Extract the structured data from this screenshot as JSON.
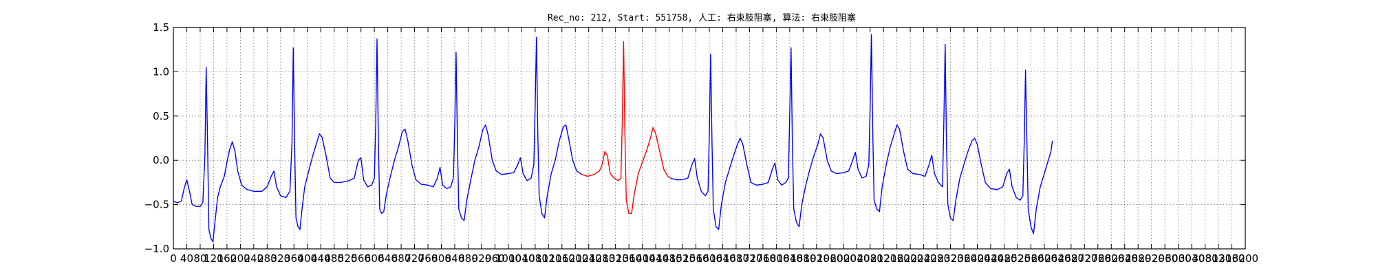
{
  "chart_data": {
    "type": "line",
    "title": "Rec_no: 212, Start: 551758, 人工: 右束肢阻塞, 算法: 右束肢阻塞",
    "xlabel": "",
    "ylabel": "",
    "xlim": [
      0,
      1600
    ],
    "ylim": [
      -1.0,
      1.5
    ],
    "grid": true,
    "yticks": [
      -1.0,
      -0.5,
      0.0,
      0.5,
      1.0,
      1.5
    ],
    "ytick_labels": [
      "−1.0",
      "−0.5",
      "0.0",
      "0.5",
      "1.0",
      "1.5"
    ],
    "xticks": [
      0,
      20,
      40,
      60,
      80,
      100,
      120,
      140,
      160,
      180,
      200,
      220,
      240,
      260,
      280,
      300,
      320,
      340,
      360,
      380,
      400,
      420,
      440,
      460,
      480,
      500,
      520,
      540,
      560,
      580,
      600,
      620,
      640,
      660,
      680,
      700,
      720,
      740,
      760,
      780,
      800,
      820,
      840,
      860,
      880,
      900,
      920,
      940,
      960,
      980,
      1000,
      1020,
      1040,
      1060,
      1080,
      1100,
      1120,
      1140,
      1160,
      1180,
      1200,
      1220,
      1240,
      1260,
      1280,
      1300,
      1320,
      1340,
      1360,
      1380,
      1400,
      1420,
      1440,
      1460,
      1480,
      1500,
      1520,
      1540,
      1560,
      1580,
      1600
    ],
    "xtick_labels": [
      "0",
      "40",
      "80",
      "120",
      "160",
      "200",
      "240",
      "280",
      "320",
      "360",
      "400",
      "440",
      "480",
      "520",
      "560",
      "600",
      "640",
      "680",
      "720",
      "760",
      "800",
      "840",
      "880",
      "920",
      "960",
      "1000",
      "1040",
      "1080",
      "1120",
      "1160",
      "1200",
      "1240",
      "1280",
      "1320",
      "1360",
      "1400",
      "1440",
      "1480",
      "1520",
      "1560",
      "1600",
      "1640",
      "1680",
      "1720",
      "1760",
      "1800",
      "1840",
      "1880",
      "1920",
      "1960",
      "2000",
      "2040",
      "2080",
      "2120",
      "2160",
      "2200",
      "2240",
      "2280",
      "2320",
      "2360",
      "2400",
      "2440",
      "2480",
      "2520",
      "2560",
      "2600",
      "2640",
      "2680",
      "2720",
      "2760",
      "2800",
      "2840",
      "2880",
      "2920",
      "2960",
      "3000",
      "3040",
      "3080",
      "3120",
      "3160",
      "3200"
    ],
    "series": [
      {
        "color": "#0000ff",
        "points": [
          [
            0,
            -0.46
          ],
          [
            6,
            -0.48
          ],
          [
            12,
            -0.46
          ],
          [
            16,
            -0.32
          ],
          [
            20,
            -0.22
          ],
          [
            24,
            -0.35
          ],
          [
            28,
            -0.5
          ],
          [
            34,
            -0.52
          ],
          [
            40,
            -0.52
          ],
          [
            44,
            -0.48
          ],
          [
            47,
            0.05
          ],
          [
            49,
            1.05
          ],
          [
            51,
            0.2
          ],
          [
            53,
            -0.78
          ],
          [
            56,
            -0.88
          ],
          [
            59,
            -0.92
          ],
          [
            62,
            -0.7
          ],
          [
            66,
            -0.42
          ],
          [
            70,
            -0.3
          ],
          [
            76,
            -0.18
          ],
          [
            80,
            -0.02
          ],
          [
            84,
            0.12
          ],
          [
            88,
            0.21
          ],
          [
            92,
            0.1
          ],
          [
            96,
            -0.12
          ],
          [
            102,
            -0.28
          ],
          [
            110,
            -0.33
          ],
          [
            120,
            -0.35
          ],
          [
            132,
            -0.35
          ],
          [
            140,
            -0.3
          ],
          [
            146,
            -0.18
          ],
          [
            150,
            -0.12
          ],
          [
            154,
            -0.3
          ],
          [
            160,
            -0.4
          ],
          [
            168,
            -0.42
          ],
          [
            174,
            -0.35
          ],
          [
            177,
            0.2
          ],
          [
            179,
            1.27
          ],
          [
            181,
            0.2
          ],
          [
            183,
            -0.65
          ],
          [
            186,
            -0.75
          ],
          [
            189,
            -0.78
          ],
          [
            192,
            -0.55
          ],
          [
            196,
            -0.3
          ],
          [
            202,
            -0.12
          ],
          [
            208,
            0.05
          ],
          [
            214,
            0.2
          ],
          [
            218,
            0.3
          ],
          [
            222,
            0.26
          ],
          [
            228,
            0.05
          ],
          [
            234,
            -0.2
          ],
          [
            240,
            -0.25
          ],
          [
            250,
            -0.25
          ],
          [
            262,
            -0.23
          ],
          [
            270,
            -0.2
          ],
          [
            276,
            0.0
          ],
          [
            280,
            0.03
          ],
          [
            284,
            -0.22
          ],
          [
            290,
            -0.3
          ],
          [
            296,
            -0.28
          ],
          [
            300,
            -0.2
          ],
          [
            302,
            0.4
          ],
          [
            304,
            1.37
          ],
          [
            306,
            0.2
          ],
          [
            308,
            -0.55
          ],
          [
            311,
            -0.6
          ],
          [
            314,
            -0.58
          ],
          [
            318,
            -0.38
          ],
          [
            324,
            -0.18
          ],
          [
            330,
            0.0
          ],
          [
            336,
            0.15
          ],
          [
            342,
            0.33
          ],
          [
            346,
            0.35
          ],
          [
            350,
            0.22
          ],
          [
            356,
            -0.05
          ],
          [
            362,
            -0.22
          ],
          [
            370,
            -0.27
          ],
          [
            380,
            -0.28
          ],
          [
            388,
            -0.3
          ],
          [
            394,
            -0.2
          ],
          [
            398,
            -0.08
          ],
          [
            402,
            -0.28
          ],
          [
            408,
            -0.32
          ],
          [
            414,
            -0.3
          ],
          [
            418,
            -0.2
          ],
          [
            420,
            0.4
          ],
          [
            422,
            1.22
          ],
          [
            424,
            0.2
          ],
          [
            426,
            -0.55
          ],
          [
            430,
            -0.65
          ],
          [
            434,
            -0.68
          ],
          [
            438,
            -0.45
          ],
          [
            444,
            -0.22
          ],
          [
            450,
            0.0
          ],
          [
            456,
            0.15
          ],
          [
            462,
            0.35
          ],
          [
            466,
            0.4
          ],
          [
            470,
            0.28
          ],
          [
            476,
            0.0
          ],
          [
            482,
            -0.12
          ],
          [
            490,
            -0.16
          ],
          [
            500,
            -0.15
          ],
          [
            508,
            -0.14
          ],
          [
            514,
            -0.05
          ],
          [
            518,
            0.03
          ],
          [
            522,
            -0.15
          ],
          [
            528,
            -0.23
          ],
          [
            534,
            -0.2
          ],
          [
            538,
            -0.05
          ],
          [
            540,
            0.6
          ],
          [
            542,
            1.39
          ],
          [
            544,
            0.3
          ],
          [
            546,
            -0.4
          ],
          [
            550,
            -0.6
          ],
          [
            554,
            -0.65
          ],
          [
            558,
            -0.4
          ],
          [
            564,
            -0.15
          ],
          [
            570,
            0.0
          ],
          [
            576,
            0.22
          ],
          [
            582,
            0.38
          ],
          [
            586,
            0.4
          ],
          [
            590,
            0.25
          ],
          [
            596,
            0.0
          ],
          [
            602,
            -0.12
          ],
          [
            610,
            -0.16
          ]
        ]
      },
      {
        "color": "#ff0000",
        "points": [
          [
            610,
            -0.16
          ],
          [
            618,
            -0.18
          ],
          [
            628,
            -0.16
          ],
          [
            636,
            -0.12
          ],
          [
            640,
            -0.05
          ],
          [
            644,
            0.1
          ],
          [
            648,
            0.05
          ],
          [
            652,
            -0.15
          ],
          [
            658,
            -0.2
          ],
          [
            664,
            -0.23
          ],
          [
            668,
            -0.2
          ],
          [
            670,
            0.4
          ],
          [
            672,
            1.34
          ],
          [
            674,
            0.3
          ],
          [
            676,
            -0.45
          ],
          [
            680,
            -0.6
          ],
          [
            684,
            -0.6
          ],
          [
            688,
            -0.38
          ],
          [
            694,
            -0.15
          ],
          [
            700,
            -0.02
          ],
          [
            706,
            0.1
          ],
          [
            712,
            0.25
          ],
          [
            716,
            0.37
          ],
          [
            720,
            0.3
          ],
          [
            726,
            0.1
          ],
          [
            732,
            -0.1
          ],
          [
            738,
            -0.18
          ],
          [
            742,
            -0.2
          ]
        ]
      },
      {
        "color": "#0000ff",
        "points": [
          [
            742,
            -0.2
          ],
          [
            750,
            -0.22
          ],
          [
            760,
            -0.22
          ],
          [
            768,
            -0.2
          ],
          [
            774,
            -0.05
          ],
          [
            778,
            0.02
          ],
          [
            782,
            -0.2
          ],
          [
            788,
            -0.35
          ],
          [
            794,
            -0.4
          ],
          [
            798,
            -0.35
          ],
          [
            800,
            0.3
          ],
          [
            802,
            1.2
          ],
          [
            804,
            0.2
          ],
          [
            806,
            -0.55
          ],
          [
            810,
            -0.75
          ],
          [
            814,
            -0.78
          ],
          [
            818,
            -0.5
          ],
          [
            824,
            -0.25
          ],
          [
            830,
            -0.1
          ],
          [
            836,
            0.05
          ],
          [
            842,
            0.18
          ],
          [
            846,
            0.25
          ],
          [
            850,
            0.18
          ],
          [
            856,
            -0.05
          ],
          [
            862,
            -0.25
          ],
          [
            870,
            -0.28
          ],
          [
            880,
            -0.27
          ],
          [
            888,
            -0.25
          ],
          [
            894,
            -0.1
          ],
          [
            898,
            -0.03
          ],
          [
            902,
            -0.22
          ],
          [
            908,
            -0.28
          ],
          [
            914,
            -0.25
          ],
          [
            918,
            -0.2
          ],
          [
            920,
            0.5
          ],
          [
            922,
            1.27
          ],
          [
            924,
            0.2
          ],
          [
            926,
            -0.55
          ],
          [
            930,
            -0.7
          ],
          [
            934,
            -0.75
          ],
          [
            938,
            -0.5
          ],
          [
            944,
            -0.28
          ],
          [
            950,
            -0.1
          ],
          [
            956,
            0.05
          ],
          [
            962,
            0.18
          ],
          [
            966,
            0.3
          ],
          [
            970,
            0.25
          ],
          [
            976,
            0.0
          ],
          [
            982,
            -0.12
          ],
          [
            990,
            -0.15
          ],
          [
            1000,
            -0.14
          ],
          [
            1008,
            -0.12
          ],
          [
            1014,
            0.0
          ],
          [
            1018,
            0.09
          ],
          [
            1022,
            -0.1
          ],
          [
            1028,
            -0.2
          ],
          [
            1034,
            -0.18
          ],
          [
            1038,
            -0.05
          ],
          [
            1040,
            0.6
          ],
          [
            1042,
            1.42
          ],
          [
            1044,
            0.3
          ],
          [
            1046,
            -0.45
          ],
          [
            1050,
            -0.55
          ],
          [
            1054,
            -0.58
          ],
          [
            1058,
            -0.3
          ],
          [
            1064,
            -0.05
          ],
          [
            1070,
            0.15
          ],
          [
            1076,
            0.3
          ],
          [
            1080,
            0.4
          ],
          [
            1084,
            0.35
          ],
          [
            1090,
            0.1
          ],
          [
            1096,
            -0.1
          ],
          [
            1104,
            -0.15
          ],
          [
            1114,
            -0.16
          ],
          [
            1122,
            -0.18
          ],
          [
            1128,
            -0.05
          ],
          [
            1132,
            0.06
          ],
          [
            1136,
            -0.15
          ],
          [
            1142,
            -0.25
          ],
          [
            1148,
            -0.3
          ],
          [
            1150,
            0.4
          ],
          [
            1152,
            1.31
          ],
          [
            1154,
            0.2
          ],
          [
            1156,
            -0.5
          ],
          [
            1160,
            -0.65
          ],
          [
            1164,
            -0.68
          ],
          [
            1168,
            -0.45
          ],
          [
            1174,
            -0.2
          ],
          [
            1180,
            -0.05
          ],
          [
            1186,
            0.1
          ],
          [
            1192,
            0.22
          ],
          [
            1196,
            0.25
          ],
          [
            1200,
            0.18
          ],
          [
            1206,
            -0.05
          ],
          [
            1212,
            -0.25
          ],
          [
            1220,
            -0.32
          ],
          [
            1230,
            -0.33
          ],
          [
            1238,
            -0.3
          ],
          [
            1244,
            -0.15
          ],
          [
            1248,
            -0.1
          ],
          [
            1252,
            -0.3
          ],
          [
            1258,
            -0.42
          ],
          [
            1264,
            -0.45
          ],
          [
            1268,
            -0.4
          ],
          [
            1270,
            0.2
          ],
          [
            1272,
            1.02
          ],
          [
            1274,
            0.2
          ],
          [
            1276,
            -0.55
          ],
          [
            1280,
            -0.75
          ],
          [
            1284,
            -0.83
          ],
          [
            1288,
            -0.55
          ],
          [
            1294,
            -0.3
          ],
          [
            1300,
            -0.15
          ],
          [
            1306,
            0.0
          ],
          [
            1310,
            0.1
          ],
          [
            1312,
            0.22
          ]
        ]
      }
    ]
  }
}
